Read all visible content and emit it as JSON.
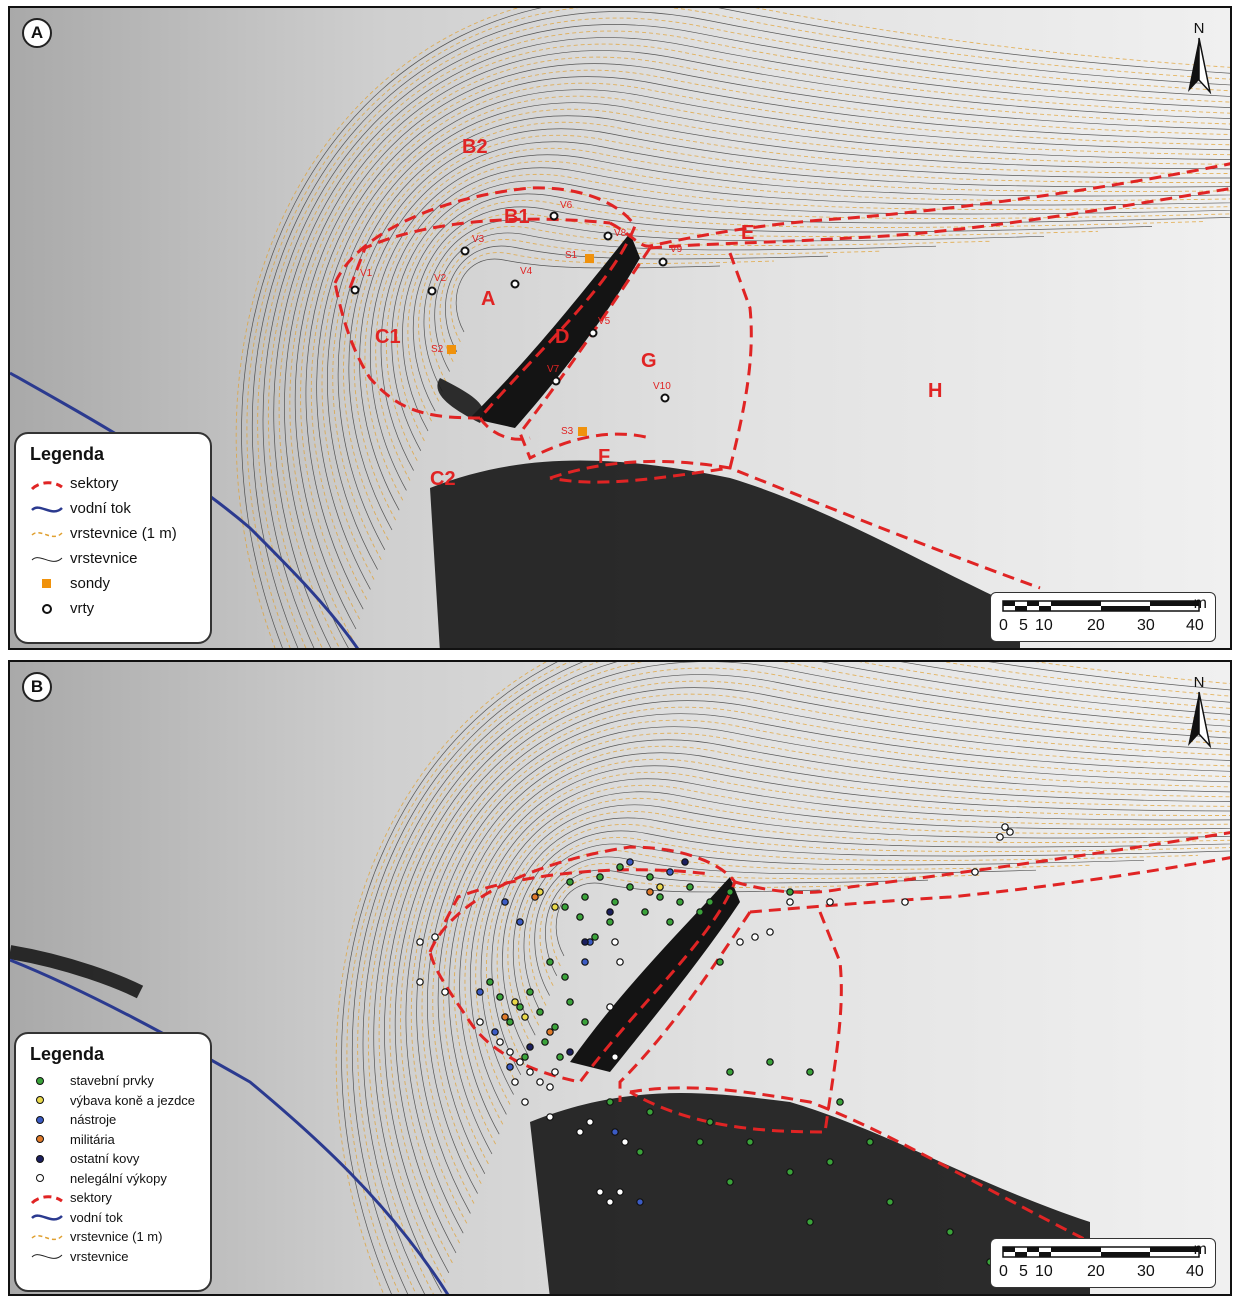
{
  "panel_a": {
    "badge": "A",
    "north": "N",
    "sector_labels": [
      "B2",
      "B1",
      "A",
      "C1",
      "C2",
      "D",
      "E",
      "F",
      "G",
      "H"
    ],
    "borehole_labels": [
      "V1",
      "V2",
      "V3",
      "V4",
      "V5",
      "V6",
      "V7",
      "V8",
      "V9",
      "V10"
    ],
    "probe_labels": [
      "S1",
      "S2",
      "S3"
    ],
    "legend": {
      "title": "Legenda",
      "items": [
        "sektory",
        "vodní tok",
        "vrstevnice (1 m)",
        "vrstevnice",
        "sondy",
        "vrty"
      ]
    },
    "scale": {
      "unit": "m",
      "ticks": [
        "0",
        "5",
        "10",
        "20",
        "30",
        "40"
      ]
    }
  },
  "panel_b": {
    "badge": "B",
    "north": "N",
    "legend": {
      "title": "Legenda",
      "items": [
        "stavební prvky",
        "výbava koně a jezdce",
        "nástroje",
        "militária",
        "ostatní kovy",
        "nelegální výkopy",
        "sektory",
        "vodní tok",
        "vrstevnice (1 m)",
        "vrstevnice"
      ]
    },
    "scale": {
      "unit": "m",
      "ticks": [
        "0",
        "5",
        "10",
        "20",
        "30",
        "40"
      ]
    }
  },
  "colors": {
    "sector": "#e02424",
    "river": "#2b3a8f",
    "contour_1m": "#e0a030",
    "contour": "#222222",
    "probe": "#f0920c",
    "find_building": "#3aa33a",
    "find_horse": "#e8d84a",
    "find_tools": "#3b5bc4",
    "find_military": "#e07a2a",
    "find_other": "#1b1f5e",
    "find_illegal": "#ffffff"
  }
}
